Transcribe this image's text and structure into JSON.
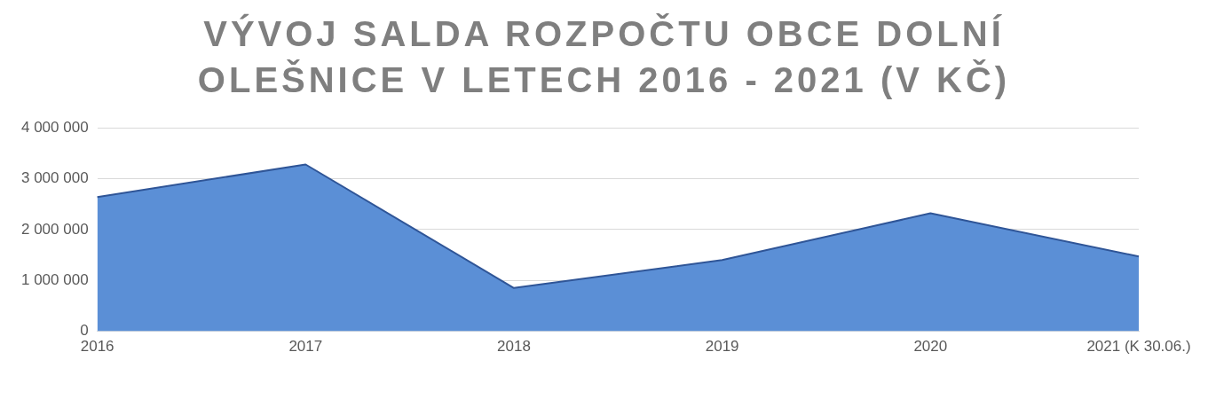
{
  "chart_data": {
    "type": "area",
    "title": "VÝVOJ SALDA ROZPOČTU OBCE DOLNÍ OLEŠNICE V LETECH 2016 - 2021 (V KČ)",
    "categories": [
      "2016",
      "2017",
      "2018",
      "2019",
      "2020",
      "2021 (K 30.06.)"
    ],
    "values": [
      2640000,
      3280000,
      850000,
      1400000,
      2320000,
      1470000
    ],
    "color": "#5b8fd6",
    "ylim": [
      0,
      4000000
    ],
    "yticks": [
      {
        "value": 0,
        "label": "0"
      },
      {
        "value": 1000000,
        "label": "1 000 000"
      },
      {
        "value": 2000000,
        "label": "2 000 000"
      },
      {
        "value": 3000000,
        "label": "3 000 000"
      },
      {
        "value": 4000000,
        "label": "4 000 000"
      }
    ],
    "grid": "y"
  }
}
